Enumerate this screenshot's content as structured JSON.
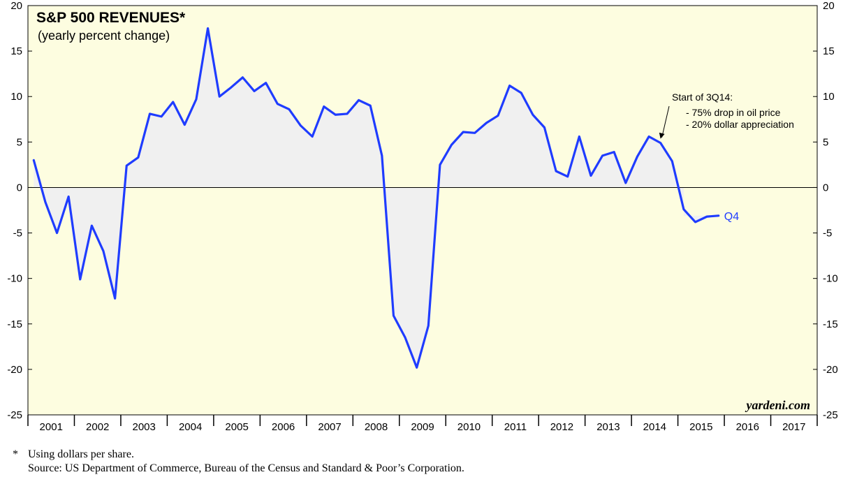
{
  "chart_data": {
    "type": "line",
    "title": "S&P 500 REVENUES*",
    "subtitle": "(yearly percent change)",
    "ylim": [
      -25,
      20
    ],
    "yticks": [
      20,
      15,
      10,
      5,
      0,
      -5,
      -10,
      -15,
      -20,
      -25
    ],
    "year_labels": [
      "2001",
      "2002",
      "2003",
      "2004",
      "2005",
      "2006",
      "2007",
      "2008",
      "2009",
      "2010",
      "2011",
      "2012",
      "2013",
      "2014",
      "2015",
      "2016",
      "2017"
    ],
    "series": [
      {
        "color": "#1f3cff",
        "end_label": "Q4",
        "x": [
          "2001 Q1",
          "2001 Q2",
          "2001 Q3",
          "2001 Q4",
          "2002 Q1",
          "2002 Q2",
          "2002 Q3",
          "2002 Q4",
          "2003 Q1",
          "2003 Q2",
          "2003 Q3",
          "2003 Q4",
          "2004 Q1",
          "2004 Q2",
          "2004 Q3",
          "2004 Q4",
          "2005 Q1",
          "2005 Q2",
          "2005 Q3",
          "2005 Q4",
          "2006 Q1",
          "2006 Q2",
          "2006 Q3",
          "2006 Q4",
          "2007 Q1",
          "2007 Q2",
          "2007 Q3",
          "2007 Q4",
          "2008 Q1",
          "2008 Q2",
          "2008 Q3",
          "2008 Q4",
          "2009 Q1",
          "2009 Q2",
          "2009 Q3",
          "2009 Q4",
          "2010 Q1",
          "2010 Q2",
          "2010 Q3",
          "2010 Q4",
          "2011 Q1",
          "2011 Q2",
          "2011 Q3",
          "2011 Q4",
          "2012 Q1",
          "2012 Q2",
          "2012 Q3",
          "2012 Q4",
          "2013 Q1",
          "2013 Q2",
          "2013 Q3",
          "2013 Q4",
          "2014 Q1",
          "2014 Q2",
          "2014 Q3",
          "2014 Q4",
          "2015 Q1",
          "2015 Q2",
          "2015 Q3",
          "2015 Q4"
        ],
        "values": [
          3.0,
          -1.6,
          -5.0,
          -1.0,
          -10.1,
          -4.2,
          -7.0,
          -12.2,
          2.4,
          3.3,
          8.1,
          7.8,
          9.4,
          6.9,
          9.7,
          17.5,
          10.0,
          11.0,
          12.1,
          10.6,
          11.5,
          9.2,
          8.6,
          6.8,
          5.6,
          8.9,
          8.0,
          8.1,
          9.6,
          9.0,
          3.5,
          -14.1,
          -16.5,
          -19.8,
          -15.2,
          2.5,
          4.7,
          6.1,
          6.0,
          7.1,
          7.9,
          11.2,
          10.4,
          8.0,
          6.6,
          1.8,
          1.2,
          5.6,
          1.3,
          3.5,
          3.9,
          0.5,
          3.4,
          5.6,
          4.9,
          2.9,
          -2.4,
          -3.8,
          -3.2,
          -3.1
        ]
      }
    ],
    "annotation": {
      "title": "Start of 3Q14:",
      "lines": [
        "- 75% drop in oil price",
        "- 20% dollar appreciation"
      ],
      "target": "2014 Q3"
    },
    "watermark": "yardeni.com",
    "colors": {
      "plot_bg": "#fdfde0",
      "area_fill": "#f0f0f0",
      "line": "#1f3cff"
    }
  },
  "footnotes": {
    "marker": "*",
    "note": "Using dollars per share.",
    "source": "Source: US Department of Commerce, Bureau of the Census and Standard & Poor’s Corporation."
  }
}
